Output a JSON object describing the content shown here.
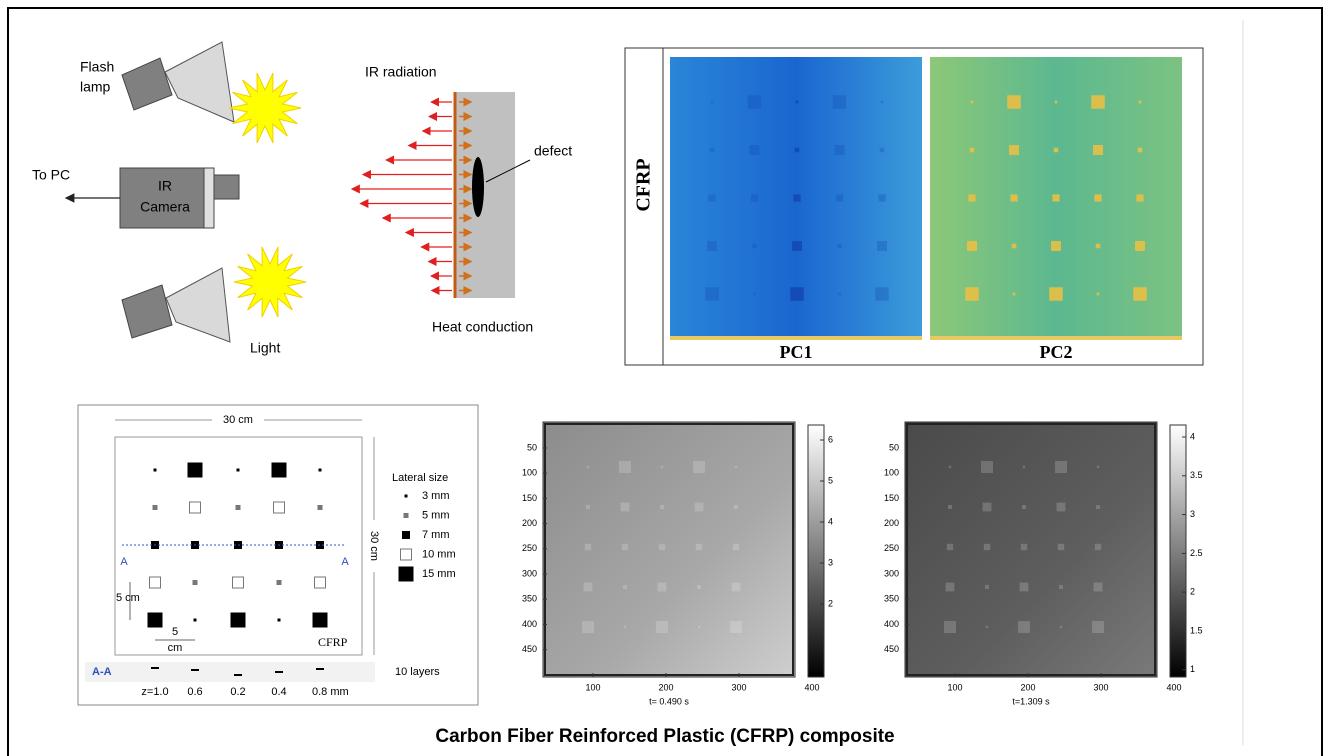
{
  "setup": {
    "flash_lamp": [
      "Flash",
      "lamp"
    ],
    "ir_camera": [
      "IR",
      "Camera"
    ],
    "to_pc": "To PC",
    "light": "Light",
    "ir_radiation": "IR radiation",
    "defect": "defect",
    "heat_conduction": "Heat conduction"
  },
  "thermal": {
    "side_label": "CFRP",
    "panels": [
      "PC1",
      "PC2"
    ]
  },
  "specimen": {
    "width": "30 cm",
    "height": "30 cm",
    "legend_title": "Lateral size",
    "legend": [
      "3 mm",
      "5 mm",
      "7 mm",
      "10 mm",
      "15 mm"
    ],
    "section_marks": [
      "A",
      "A"
    ],
    "spacing_vertical": "5 cm",
    "spacing_horizontal": [
      "5",
      "cm"
    ],
    "material": "CFRP",
    "section": "A-A",
    "layers": "10 layers",
    "depths": [
      "z=1.0",
      "0.6",
      "0.2",
      "0.4",
      "0.8 mm"
    ]
  },
  "thermograms": [
    {
      "yticks": [
        "50",
        "100",
        "150",
        "200",
        "250",
        "300",
        "350",
        "400",
        "450"
      ],
      "xticks": [
        "100",
        "200",
        "300",
        "400"
      ],
      "cbar_ticks": [
        "2",
        "3",
        "4",
        "5",
        "6"
      ],
      "caption": "t= 0.490 s"
    },
    {
      "yticks": [
        "50",
        "100",
        "150",
        "200",
        "250",
        "300",
        "350",
        "400",
        "450"
      ],
      "xticks": [
        "100",
        "200",
        "300",
        "400"
      ],
      "cbar_ticks": [
        "1",
        "1.5",
        "2",
        "2.5",
        "3",
        "3.5",
        "4"
      ],
      "caption": "t=1.309 s"
    }
  ],
  "caption": "Carbon Fiber Reinforced Plastic (CFRP) composite"
}
